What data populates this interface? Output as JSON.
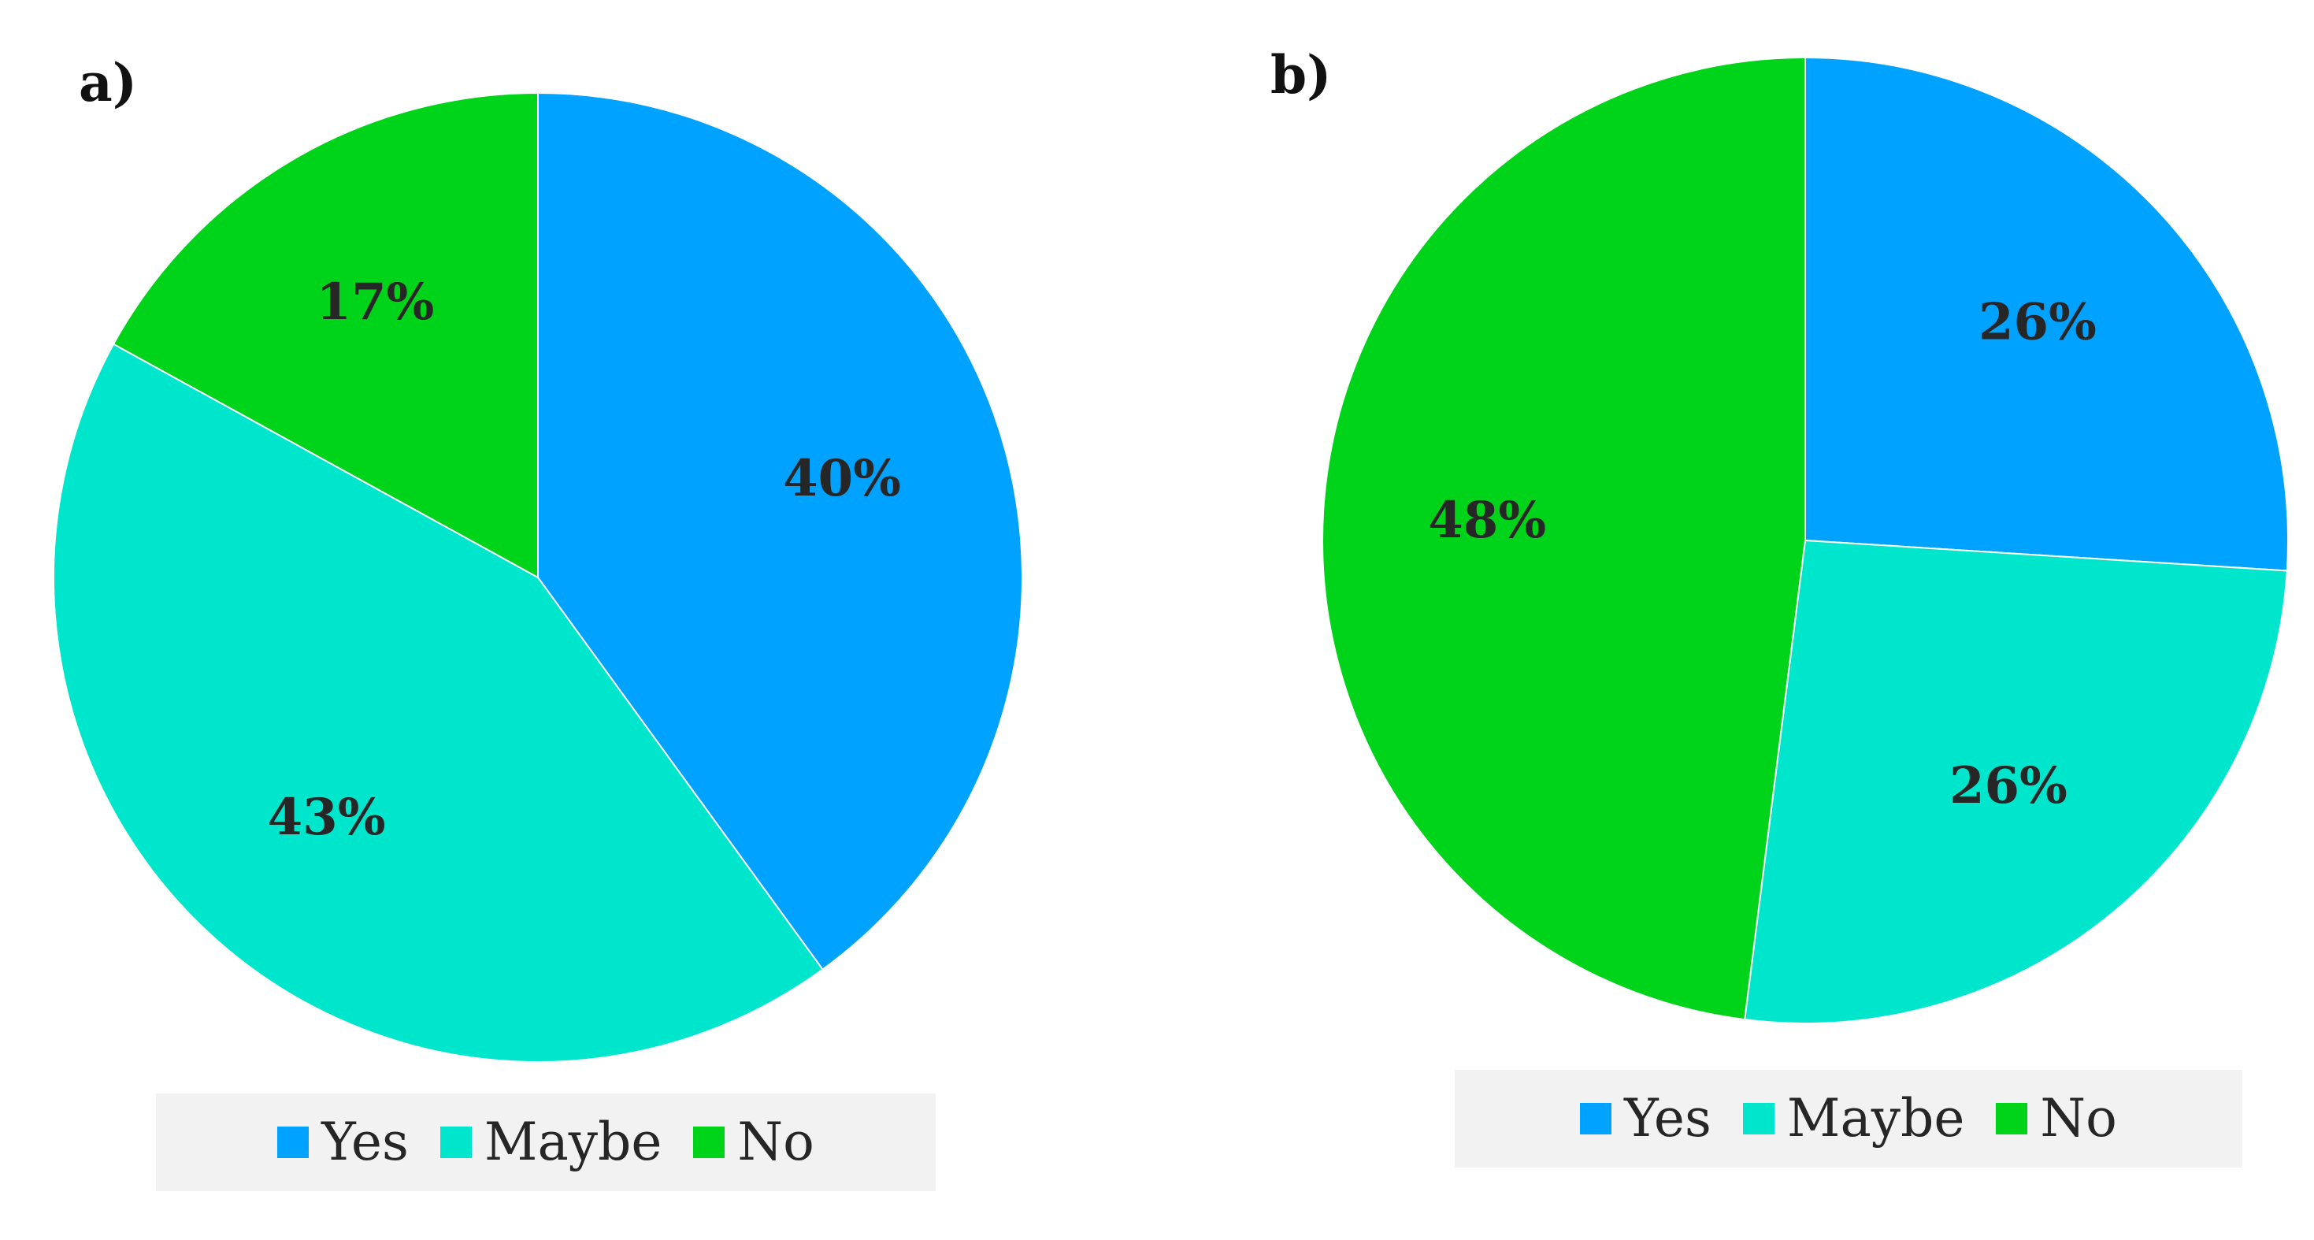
{
  "chart_data": [
    {
      "type": "pie",
      "panel_label": "a)",
      "categories": [
        "Yes",
        "Maybe",
        "No"
      ],
      "values": [
        40,
        43,
        17
      ],
      "value_labels": [
        "40%",
        "43%",
        "17%"
      ],
      "colors": [
        "#00a2ff",
        "#00e6cd",
        "#00d41a"
      ],
      "legend": {
        "position": "bottom",
        "entries": [
          "Yes",
          "Maybe",
          "No"
        ]
      }
    },
    {
      "type": "pie",
      "panel_label": "b)",
      "categories": [
        "Yes",
        "Maybe",
        "No"
      ],
      "values": [
        26,
        26,
        48
      ],
      "value_labels": [
        "26%",
        "26%",
        "48%"
      ],
      "colors": [
        "#00a2ff",
        "#00e6cd",
        "#00d41a"
      ],
      "legend": {
        "position": "bottom",
        "entries": [
          "Yes",
          "Maybe",
          "No"
        ]
      }
    }
  ]
}
